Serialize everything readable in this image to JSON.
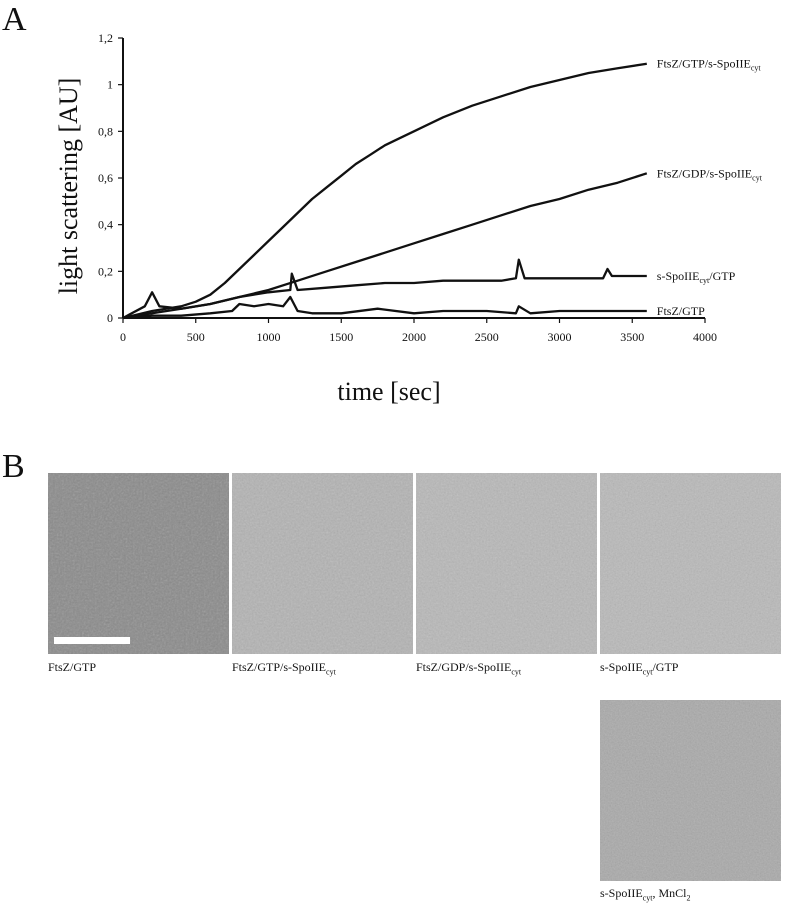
{
  "panels": {
    "a_letter": "A",
    "b_letter": "B"
  },
  "chart_data": {
    "type": "line",
    "xlabel": "time [sec]",
    "ylabel": "light scattering [AU]",
    "xlim": [
      0,
      4000
    ],
    "ylim": [
      0,
      1.2
    ],
    "x_ticks": [
      "0",
      "500",
      "1000",
      "1500",
      "2000",
      "2500",
      "3000",
      "3500",
      "4000"
    ],
    "y_ticks": [
      "0",
      "0,2",
      "0,4",
      "0,6",
      "0,8",
      "1",
      "1,2"
    ],
    "grid": false,
    "legend": "none (series labelled at line ends)",
    "series": [
      {
        "name": "FtsZ/GTP/s-SpoIIEcyt",
        "label_main": "FtsZ/GTP/s-SpoIIE",
        "label_sub": "cyt",
        "label_tail": "",
        "x": [
          0,
          200,
          400,
          500,
          600,
          700,
          800,
          900,
          1000,
          1100,
          1200,
          1300,
          1400,
          1500,
          1600,
          1700,
          1800,
          1900,
          2000,
          2200,
          2400,
          2600,
          2800,
          3000,
          3200,
          3400,
          3600
        ],
        "y": [
          0,
          0.03,
          0.05,
          0.07,
          0.1,
          0.15,
          0.21,
          0.27,
          0.33,
          0.39,
          0.45,
          0.51,
          0.56,
          0.61,
          0.66,
          0.7,
          0.74,
          0.77,
          0.8,
          0.86,
          0.91,
          0.95,
          0.99,
          1.02,
          1.05,
          1.07,
          1.09
        ]
      },
      {
        "name": "FtsZ/GDP/s-SpoIIEcyt",
        "label_main": "FtsZ/GDP/s-SpoIIE",
        "label_sub": "cyt",
        "label_tail": "",
        "x": [
          0,
          200,
          400,
          600,
          800,
          1000,
          1200,
          1400,
          1600,
          1800,
          2000,
          2200,
          2400,
          2600,
          2800,
          3000,
          3200,
          3400,
          3600
        ],
        "y": [
          0,
          0.02,
          0.04,
          0.06,
          0.09,
          0.12,
          0.16,
          0.2,
          0.24,
          0.28,
          0.32,
          0.36,
          0.4,
          0.44,
          0.48,
          0.51,
          0.55,
          0.58,
          0.62
        ]
      },
      {
        "name": "s-SpoIIEcyt/GTP",
        "label_main": "s-SpoIIE",
        "label_sub": "cyt",
        "label_tail": "/GTP",
        "x": [
          0,
          150,
          200,
          250,
          400,
          600,
          800,
          1000,
          1150,
          1160,
          1200,
          1400,
          1600,
          1800,
          2000,
          2200,
          2400,
          2600,
          2700,
          2720,
          2760,
          3000,
          3200,
          3300,
          3330,
          3360,
          3400,
          3600
        ],
        "y": [
          0,
          0.05,
          0.11,
          0.05,
          0.04,
          0.06,
          0.09,
          0.11,
          0.12,
          0.19,
          0.12,
          0.13,
          0.14,
          0.15,
          0.15,
          0.16,
          0.16,
          0.16,
          0.17,
          0.25,
          0.17,
          0.17,
          0.17,
          0.17,
          0.21,
          0.18,
          0.18,
          0.18
        ]
      },
      {
        "name": "FtsZ/GTP",
        "label_main": "FtsZ/GTP",
        "label_sub": "",
        "label_tail": "",
        "x": [
          0,
          200,
          400,
          600,
          750,
          800,
          900,
          1000,
          1100,
          1150,
          1200,
          1300,
          1500,
          1750,
          2000,
          2200,
          2500,
          2700,
          2720,
          2800,
          3000,
          3300,
          3600
        ],
        "y": [
          0,
          0.01,
          0.01,
          0.02,
          0.03,
          0.06,
          0.05,
          0.06,
          0.05,
          0.09,
          0.03,
          0.02,
          0.02,
          0.04,
          0.02,
          0.03,
          0.03,
          0.02,
          0.05,
          0.02,
          0.03,
          0.03,
          0.03
        ]
      }
    ]
  },
  "micrographs": [
    {
      "label_main": "FtsZ/GTP",
      "label_sub": "",
      "label_tail": "",
      "scale_bar": true
    },
    {
      "label_main": "FtsZ/GTP/s-SpoIIE",
      "label_sub": "cyt",
      "label_tail": "",
      "scale_bar": false
    },
    {
      "label_main": "FtsZ/GDP/s-SpoIIE",
      "label_sub": "cyt",
      "label_tail": "",
      "scale_bar": false
    },
    {
      "label_main": "s-SpoIIE",
      "label_sub": "cyt",
      "label_tail": "/GTP",
      "scale_bar": false
    },
    {
      "label_main": "s-SpoIIE",
      "label_sub": "cyt",
      "label_tail": ", MnCl",
      "label_sub2": "2",
      "scale_bar": false
    }
  ],
  "colors": {
    "line": "#111111",
    "micrograph_tones": [
      "#8a8a8a",
      "#b3b3b3",
      "#b8b8b8",
      "#b9b9b9",
      "#a9a9a9"
    ]
  }
}
